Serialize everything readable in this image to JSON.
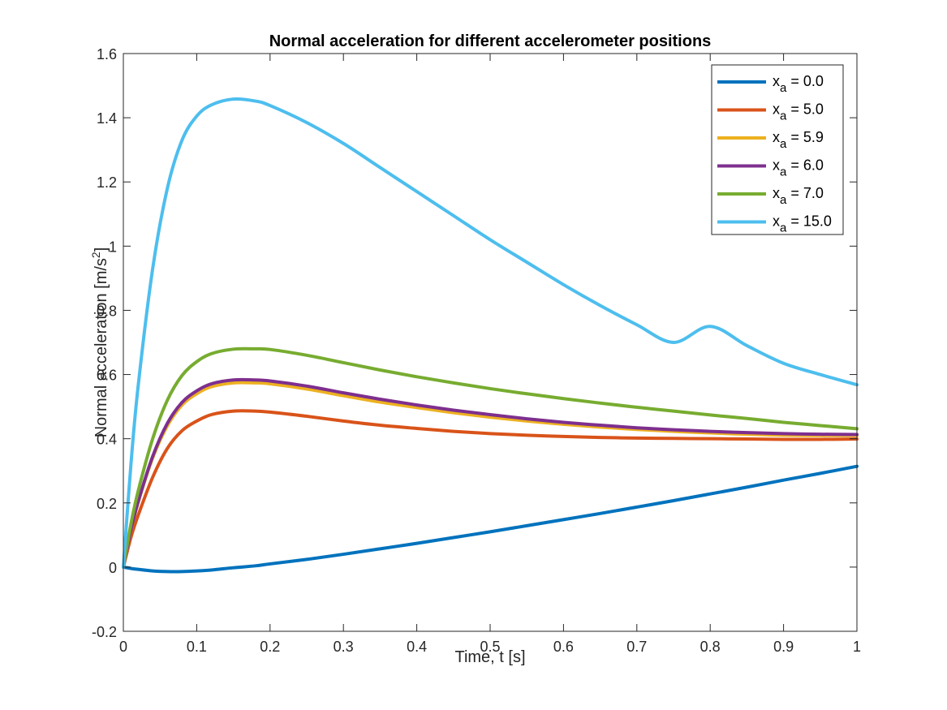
{
  "chart_data": {
    "type": "line",
    "title": "Normal acceleration for different accelerometer positions",
    "xlabel": "Time, t [s]",
    "ylabel": "Normal acceleration [m/s²]",
    "ylabel_main": "Normal acceleration [m/s",
    "ylabel_sup": "2",
    "ylabel_tail": "]",
    "xlim": [
      0,
      1
    ],
    "ylim": [
      -0.2,
      1.6
    ],
    "xticks": [
      0,
      0.1,
      0.2,
      0.3,
      0.4,
      0.5,
      0.6,
      0.7,
      0.8,
      0.9,
      1
    ],
    "xtick_labels": [
      "0",
      "0.1",
      "0.2",
      "0.3",
      "0.4",
      "0.5",
      "0.6",
      "0.7",
      "0.8",
      "0.9",
      "1"
    ],
    "yticks": [
      -0.2,
      0,
      0.2,
      0.4,
      0.6,
      0.8,
      1,
      1.2,
      1.4,
      1.6
    ],
    "ytick_labels": [
      "-0.2",
      "0",
      "0.2",
      "0.4",
      "0.6",
      "0.8",
      "1",
      "1.2",
      "1.4",
      "1.6"
    ],
    "grid": false,
    "legend_position": "top-right",
    "x": [
      0,
      0.01,
      0.02,
      0.04,
      0.06,
      0.08,
      0.1,
      0.12,
      0.15,
      0.18,
      0.2,
      0.25,
      0.3,
      0.35,
      0.4,
      0.45,
      0.5,
      0.55,
      0.6,
      0.65,
      0.7,
      0.75,
      0.8,
      0.85,
      0.9,
      0.95,
      1.0
    ],
    "series": [
      {
        "name_base": "x",
        "name_sub": "a",
        "name_rest": " = 0.0",
        "color": "#0072BD",
        "values": [
          0,
          -0.004,
          -0.007,
          -0.012,
          -0.014,
          -0.014,
          -0.012,
          -0.009,
          -0.002,
          0.004,
          0.01,
          0.024,
          0.04,
          0.057,
          0.074,
          0.092,
          0.11,
          0.129,
          0.148,
          0.167,
          0.187,
          0.207,
          0.228,
          0.249,
          0.271,
          0.292,
          0.314
        ]
      },
      {
        "name_base": "x",
        "name_sub": "a",
        "name_rest": " = 5.0",
        "color": "#D95319",
        "values": [
          0,
          0.09,
          0.16,
          0.28,
          0.37,
          0.425,
          0.455,
          0.475,
          0.486,
          0.486,
          0.483,
          0.47,
          0.455,
          0.442,
          0.432,
          0.423,
          0.416,
          0.411,
          0.407,
          0.404,
          0.402,
          0.401,
          0.4,
          0.399,
          0.398,
          0.398,
          0.399
        ]
      },
      {
        "name_base": "x",
        "name_sub": "a",
        "name_rest": " = 5.9",
        "color": "#EDB120",
        "values": [
          0,
          0.11,
          0.2,
          0.34,
          0.44,
          0.505,
          0.54,
          0.562,
          0.574,
          0.574,
          0.571,
          0.555,
          0.534,
          0.514,
          0.497,
          0.481,
          0.467,
          0.455,
          0.445,
          0.436,
          0.429,
          0.423,
          0.418,
          0.414,
          0.411,
          0.41,
          0.41
        ]
      },
      {
        "name_base": "x",
        "name_sub": "a",
        "name_rest": " = 6.0",
        "color": "#7E2F8E",
        "values": [
          0,
          0.112,
          0.202,
          0.345,
          0.448,
          0.513,
          0.549,
          0.571,
          0.583,
          0.583,
          0.58,
          0.564,
          0.543,
          0.523,
          0.505,
          0.489,
          0.475,
          0.462,
          0.451,
          0.442,
          0.434,
          0.428,
          0.423,
          0.419,
          0.416,
          0.414,
          0.413
        ]
      },
      {
        "name_base": "x",
        "name_sub": "a",
        "name_rest": " = 7.0",
        "color": "#77AC30",
        "values": [
          0,
          0.13,
          0.235,
          0.4,
          0.52,
          0.597,
          0.64,
          0.665,
          0.679,
          0.68,
          0.678,
          0.66,
          0.637,
          0.614,
          0.593,
          0.574,
          0.556,
          0.54,
          0.525,
          0.511,
          0.498,
          0.486,
          0.474,
          0.463,
          0.451,
          0.441,
          0.431
        ]
      },
      {
        "name_base": "x",
        "name_sub": "a",
        "name_rest": " = 15.0",
        "color": "#4DBEEE",
        "values": [
          0,
          0.31,
          0.56,
          0.93,
          1.18,
          1.33,
          1.405,
          1.44,
          1.458,
          1.452,
          1.438,
          1.385,
          1.32,
          1.245,
          1.17,
          1.095,
          1.02,
          0.95,
          0.88,
          0.815,
          0.755,
          0.7,
          0.75,
          0.69,
          0.635,
          0.6,
          0.568
        ]
      }
    ]
  }
}
